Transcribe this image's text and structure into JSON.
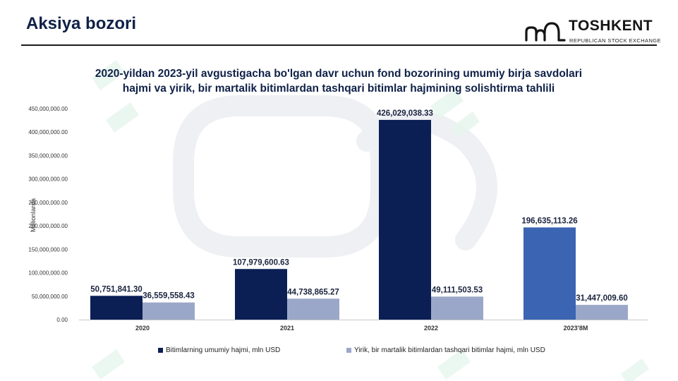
{
  "header": {
    "title": "Aksiya bozori",
    "logo_name": "TOSHKENT",
    "logo_subtitle": "REPUBLICAN STOCK EXCHANGE"
  },
  "colors": {
    "series_dark": "#0b1f55",
    "series_light": "#9aa7c8",
    "series_highlight": "#3b64b3",
    "title": "#0f2148"
  },
  "chart_data": {
    "type": "bar",
    "title": "2020-yildan 2023-yil avgustigacha bo'lgan davr uchun fond bozorining umumiy birja savdolari hajmi va yirik, bir martalik bitimlardan tashqari bitimlar hajmining solishtirma tahlili",
    "title_lines": [
      "2020-yildan 2023-yil avgustigacha bo'lgan davr uchun fond bozorining umumiy birja savdolari",
      "hajmi va yirik, bir martalik bitimlardan tashqari bitimlar hajmining solishtirma tahlili"
    ],
    "xlabel": "",
    "ylabel": "Millionlarda",
    "ylim": [
      0,
      450000000
    ],
    "yticks": [
      0,
      50000000,
      100000000,
      150000000,
      200000000,
      250000000,
      300000000,
      350000000,
      400000000,
      450000000
    ],
    "ytick_labels": [
      "0.00",
      "50,000,000.00",
      "100,000,000.00",
      "150,000,000.00",
      "200,000,000.00",
      "250,000,000.00",
      "300,000,000.00",
      "350,000,000.00",
      "400,000,000.00",
      "450,000,000.00"
    ],
    "categories": [
      "2020",
      "2021",
      "2022",
      "2023'8M"
    ],
    "grid": false,
    "legend_position": "bottom",
    "series": [
      {
        "name": "Bitimlarning umumiy hajmi, mln USD",
        "values": [
          50751841.3,
          107979600.63,
          426029038.33,
          196635113.26
        ],
        "labels": [
          "50,751,841.30",
          "107,979,600.63",
          "426,029,038.33",
          "196,635,113.26"
        ]
      },
      {
        "name": "Yirik, bir martalik bitimlardan tashqari bitimlar hajmi, mln USD",
        "values": [
          36559558.43,
          44738865.27,
          49111503.53,
          31447009.6
        ],
        "labels": [
          "36,559,558.43",
          "44,738,865.27",
          "49,111,503.53",
          "31,447,009.60"
        ]
      }
    ]
  }
}
